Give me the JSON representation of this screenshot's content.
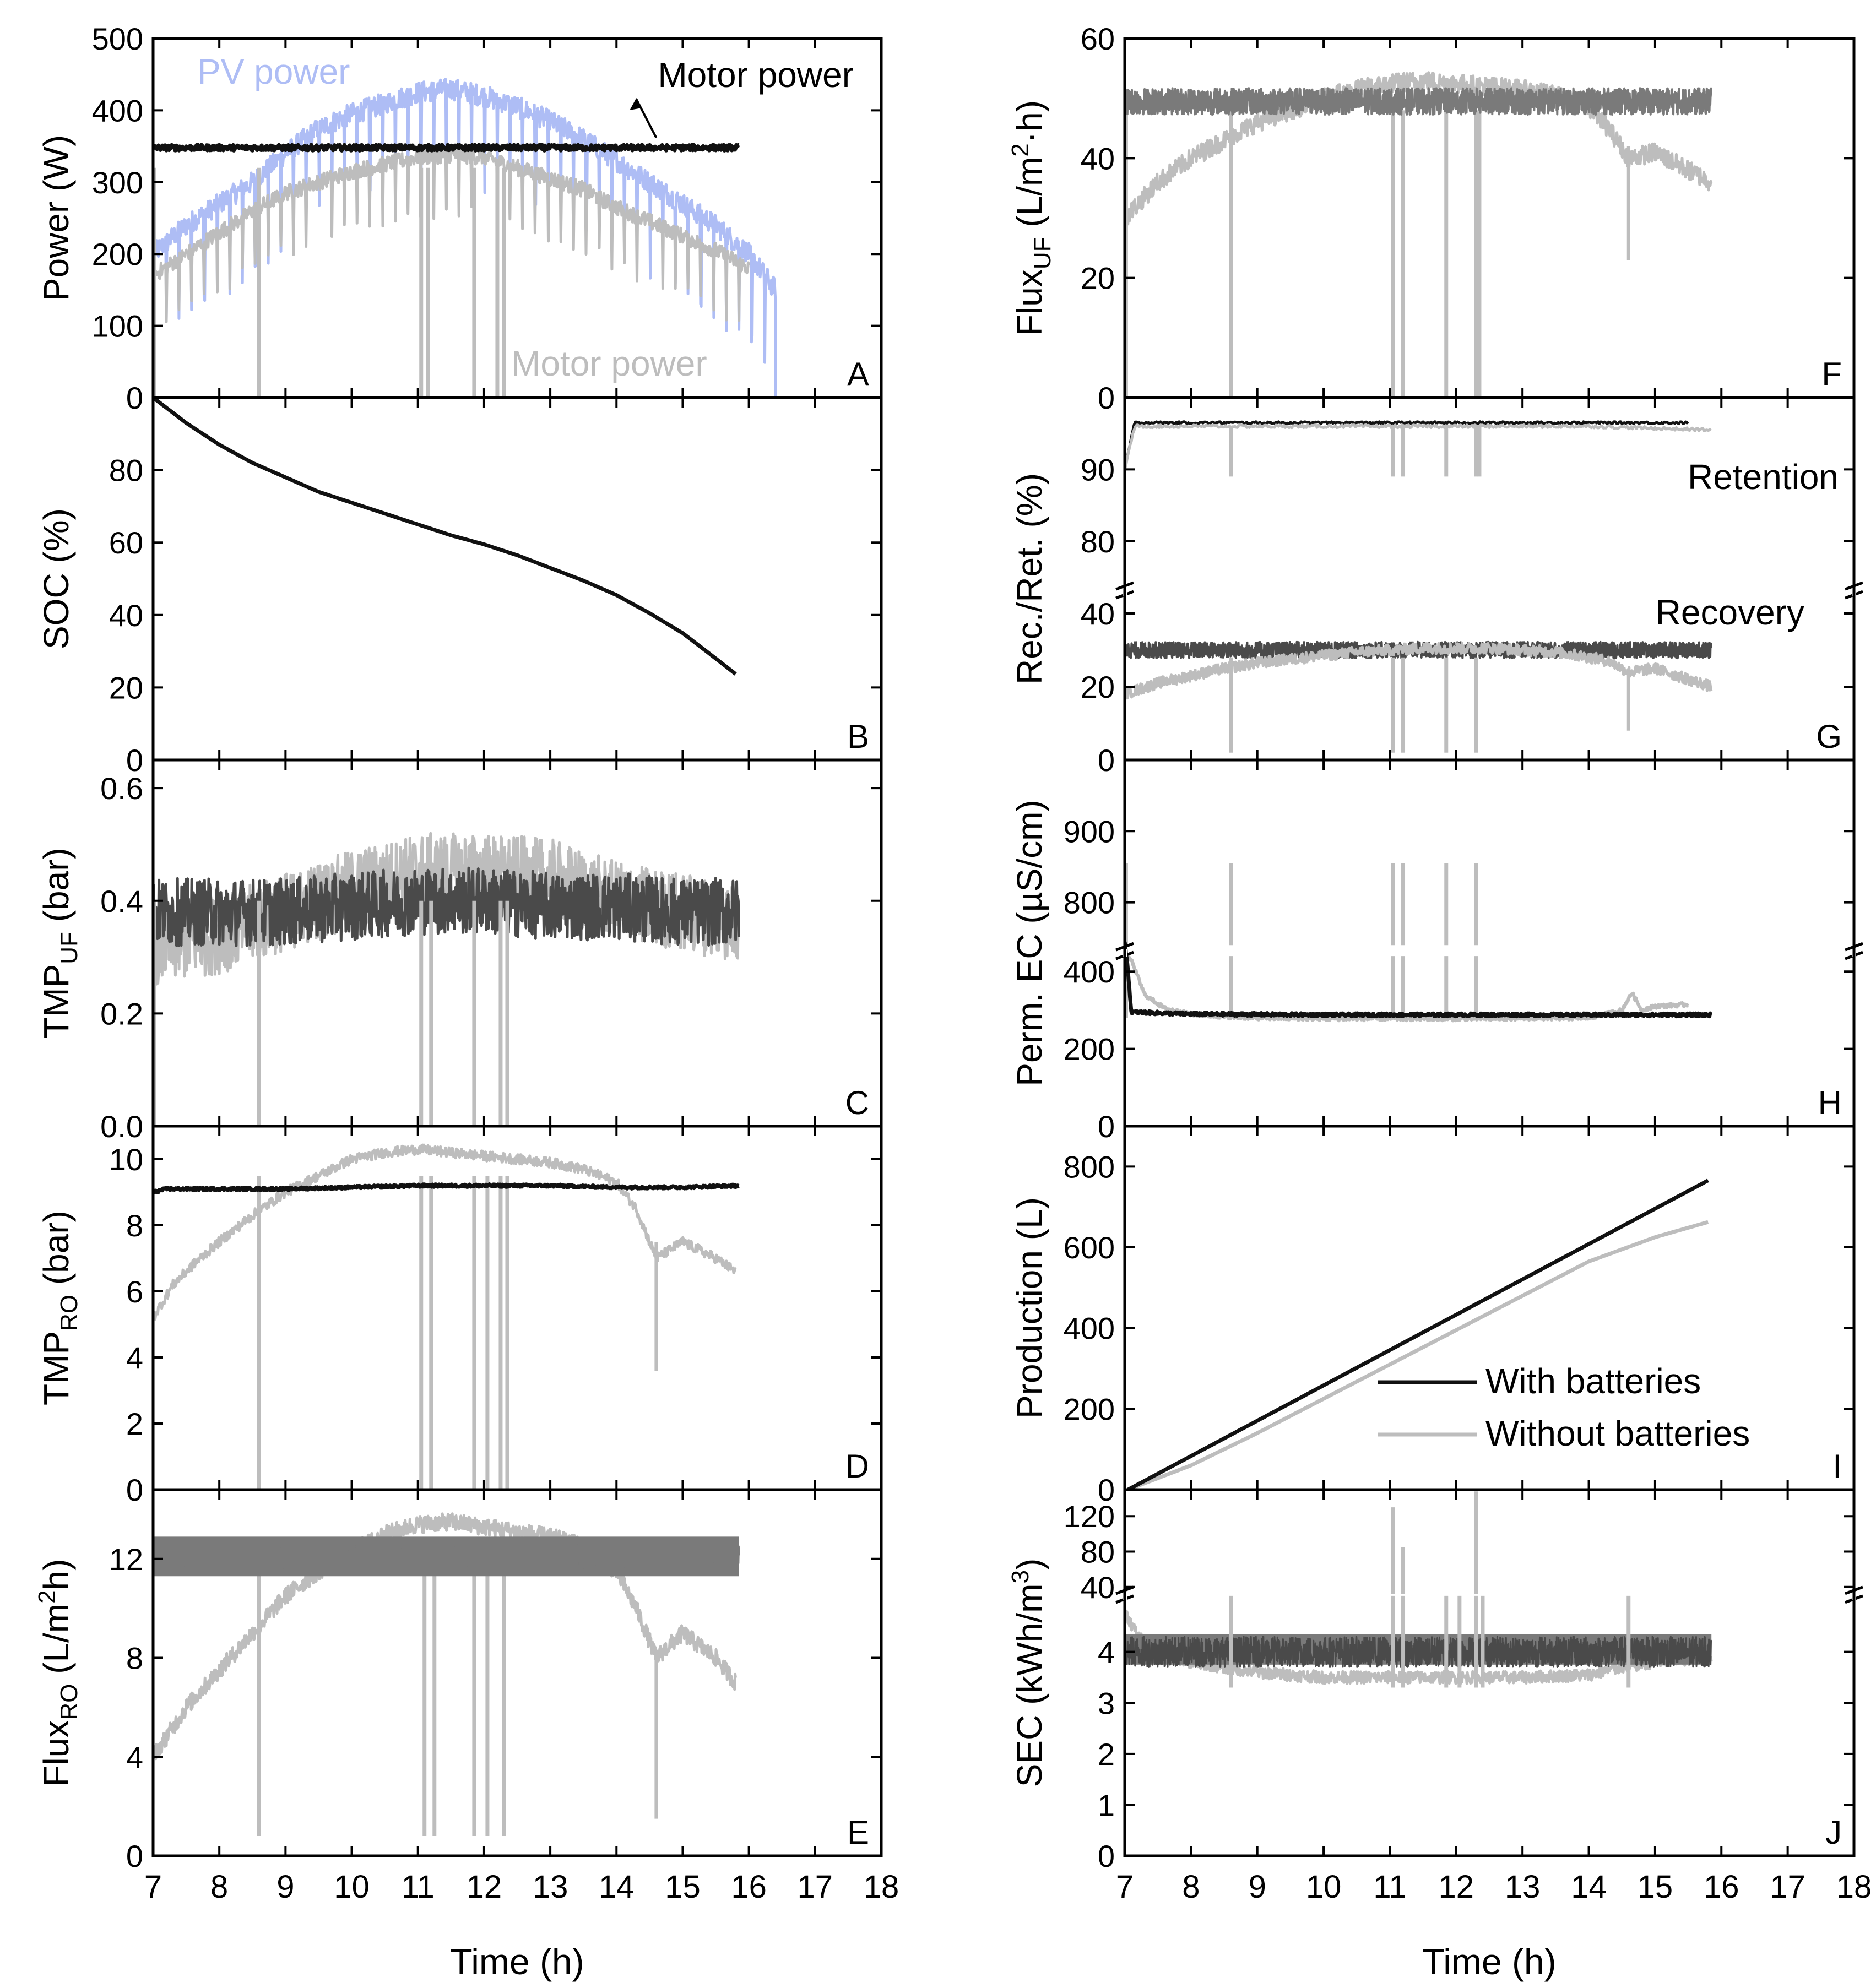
{
  "figure": {
    "x_axis": {
      "label": "Time (h)",
      "ticks": [
        "7",
        "8",
        "9",
        "10",
        "11",
        "12",
        "13",
        "14",
        "15",
        "16",
        "17",
        "18"
      ],
      "min": 7,
      "max": 18
    },
    "colors": {
      "with_batteries": "#111111",
      "with_batteries_dark": "#4a4a4a",
      "with_batteries_mid": "#7a7a7a",
      "without_batteries": "#bdbdbd",
      "pv_power": "#aebdf5"
    }
  },
  "chart_data": [
    {
      "panel": "A",
      "type": "line",
      "ylabel": "Power (W)",
      "ylim": [
        0,
        500
      ],
      "yticks": [
        "0",
        "100",
        "200",
        "300",
        "400",
        "500"
      ],
      "annotations": {
        "pv": "PV power",
        "motor_top": "Motor power",
        "motor_bottom": "Motor power"
      },
      "series": [
        {
          "name": "PV power",
          "x": [
            7.0,
            7.5,
            8.0,
            8.5,
            9.0,
            9.5,
            10.0,
            10.5,
            11.0,
            11.5,
            12.0,
            12.5,
            13.0,
            13.5,
            14.0,
            14.5,
            15.0,
            15.5,
            16.0,
            16.4
          ],
          "values": [
            200,
            240,
            270,
            300,
            340,
            375,
            395,
            410,
            425,
            430,
            420,
            405,
            385,
            360,
            330,
            300,
            270,
            240,
            200,
            150
          ]
        },
        {
          "name": "Motor power (without batteries)",
          "x": [
            7.0,
            7.5,
            8.0,
            8.5,
            9.0,
            9.5,
            10.0,
            10.5,
            11.0,
            11.5,
            12.0,
            12.5,
            13.0,
            13.5,
            14.0,
            14.5,
            15.0,
            15.5,
            16.0
          ],
          "values": [
            170,
            200,
            230,
            260,
            285,
            300,
            315,
            325,
            335,
            338,
            335,
            320,
            305,
            290,
            265,
            245,
            225,
            205,
            180
          ]
        },
        {
          "name": "Motor power (with batteries)",
          "x": [
            7.0,
            15.85
          ],
          "values": [
            348,
            348
          ]
        }
      ]
    },
    {
      "panel": "B",
      "type": "line",
      "ylabel": "SOC (%)",
      "ylim": [
        0,
        100
      ],
      "yticks": [
        "0",
        "20",
        "40",
        "60",
        "80"
      ],
      "series": [
        {
          "name": "SOC",
          "x": [
            7.0,
            7.5,
            8.0,
            8.5,
            9.0,
            9.5,
            10.0,
            10.5,
            11.0,
            11.5,
            12.0,
            12.5,
            13.0,
            13.5,
            14.0,
            14.5,
            15.0,
            15.5,
            15.85
          ],
          "values": [
            100,
            93,
            87,
            82,
            78,
            74,
            71,
            68,
            65,
            62,
            59.5,
            56.5,
            53,
            49.5,
            45.5,
            40.5,
            35,
            28,
            23
          ]
        }
      ]
    },
    {
      "panel": "C",
      "type": "line",
      "ylabel": "TMP_UF (bar)",
      "ylim": [
        0,
        0.65
      ],
      "yticks": [
        "0.0",
        "0.2",
        "0.4",
        "0.6"
      ],
      "series": [
        {
          "name": "Without batteries",
          "x": [
            7.0,
            8.0,
            9.0,
            10.0,
            11.0,
            12.0,
            13.0,
            14.0,
            15.0,
            15.85
          ],
          "values": [
            0.32,
            0.34,
            0.38,
            0.42,
            0.45,
            0.45,
            0.44,
            0.4,
            0.38,
            0.36
          ]
        },
        {
          "name": "With batteries",
          "x": [
            7.0,
            8.0,
            9.0,
            10.0,
            11.0,
            12.0,
            13.0,
            14.0,
            15.0,
            15.85
          ],
          "values": [
            0.38,
            0.38,
            0.38,
            0.39,
            0.4,
            0.4,
            0.39,
            0.39,
            0.38,
            0.38
          ]
        }
      ]
    },
    {
      "panel": "D",
      "type": "line",
      "ylabel": "TMP_RO (bar)",
      "ylim": [
        0,
        11
      ],
      "yticks": [
        "0",
        "2",
        "4",
        "6",
        "8",
        "10"
      ],
      "series": [
        {
          "name": "Without batteries",
          "x": [
            7.0,
            7.3,
            7.6,
            8.0,
            8.5,
            9.0,
            9.5,
            10.0,
            10.5,
            11.0,
            11.5,
            12.0,
            12.5,
            13.0,
            13.5,
            14.0,
            14.3,
            14.6,
            15.0,
            15.5,
            15.8
          ],
          "values": [
            5.2,
            6.2,
            6.8,
            7.5,
            8.3,
            9.0,
            9.5,
            10.0,
            10.2,
            10.3,
            10.2,
            10.1,
            10.0,
            9.9,
            9.7,
            9.3,
            8.5,
            7.0,
            7.5,
            7.0,
            6.6
          ]
        },
        {
          "name": "With batteries",
          "x": [
            7.0,
            7.2,
            8.0,
            9.0,
            10.0,
            11.0,
            12.0,
            13.0,
            14.0,
            15.0,
            15.85
          ],
          "values": [
            9.0,
            9.1,
            9.1,
            9.1,
            9.15,
            9.2,
            9.2,
            9.2,
            9.15,
            9.15,
            9.2
          ]
        }
      ]
    },
    {
      "panel": "E",
      "type": "line",
      "ylabel": "Flux_RO (L/m²h)",
      "ylim": [
        0,
        14.8
      ],
      "yticks": [
        "0",
        "4",
        "8",
        "12"
      ],
      "series": [
        {
          "name": "Without batteries",
          "x": [
            7.0,
            7.5,
            8.0,
            8.5,
            9.0,
            9.5,
            10.0,
            10.5,
            11.0,
            11.5,
            12.0,
            12.5,
            13.0,
            13.5,
            14.0,
            14.3,
            14.6,
            15.0,
            15.5,
            15.8
          ],
          "values": [
            4.0,
            6.0,
            7.5,
            9.0,
            10.5,
            11.5,
            12.3,
            13.0,
            13.4,
            13.5,
            13.3,
            13.1,
            12.9,
            12.5,
            11.5,
            10.0,
            8.0,
            9.0,
            8.0,
            7.0
          ]
        },
        {
          "name": "With batteries",
          "x": [
            7.0,
            8.0,
            9.0,
            10.0,
            11.0,
            12.0,
            13.0,
            14.0,
            15.0,
            15.85
          ],
          "values": [
            12.1,
            12.1,
            12.1,
            12.1,
            12.1,
            12.1,
            12.1,
            12.1,
            12.1,
            12.1
          ]
        }
      ]
    },
    {
      "panel": "F",
      "type": "line",
      "ylabel": "Flux_UF (L/m²·h)",
      "ylim": [
        0,
        60
      ],
      "yticks": [
        "0",
        "20",
        "40",
        "60"
      ],
      "series": [
        {
          "name": "Without batteries",
          "x": [
            7.0,
            7.5,
            8.0,
            8.5,
            9.0,
            9.5,
            10.0,
            10.5,
            11.0,
            11.5,
            12.0,
            12.5,
            13.0,
            13.5,
            14.0,
            14.3,
            14.6,
            15.0,
            15.5,
            15.85
          ],
          "values": [
            30,
            36,
            40,
            43,
            46,
            48,
            50,
            51.5,
            52.5,
            53,
            52.5,
            52,
            51.5,
            50.5,
            48.5,
            45,
            40,
            41,
            38,
            36
          ]
        },
        {
          "name": "With batteries",
          "x": [
            7.0,
            8.0,
            9.0,
            10.0,
            11.0,
            12.0,
            13.0,
            14.0,
            15.0,
            15.85
          ],
          "values": [
            49.5,
            49.5,
            49.5,
            49.5,
            49.5,
            49.5,
            49.5,
            49.5,
            49.5,
            49.5
          ]
        }
      ]
    },
    {
      "panel": "G",
      "type": "line",
      "broken_axis": true,
      "ylabel": "Rec./Ret. (%)",
      "upper": {
        "ylim": [
          73,
          100
        ],
        "yticks": [
          "80",
          "90"
        ]
      },
      "lower": {
        "ylim": [
          0,
          46
        ],
        "yticks": [
          "0",
          "20",
          "40"
        ]
      },
      "annotations": {
        "retention": "Retention",
        "recovery": "Recovery"
      },
      "retention_series": [
        {
          "name": "Retention (with batteries)",
          "x": [
            7.0,
            7.15,
            8.0,
            10.0,
            12.0,
            14.0,
            15.5
          ],
          "values": [
            90,
            96.5,
            96.5,
            96.5,
            96.5,
            96.5,
            96.5
          ]
        },
        {
          "name": "Retention (without batteries)",
          "x": [
            7.0,
            7.15,
            8.0,
            10.0,
            12.0,
            14.0,
            15.85
          ],
          "values": [
            90,
            96,
            96,
            96,
            96,
            96,
            95.5
          ]
        }
      ],
      "recovery_series": [
        {
          "name": "Recovery (with batteries)",
          "x": [
            7.0,
            8.0,
            9.0,
            10.0,
            11.0,
            12.0,
            13.0,
            14.0,
            15.0,
            15.85
          ],
          "values": [
            30,
            30,
            30,
            30,
            30,
            30,
            30,
            30,
            30,
            30
          ]
        },
        {
          "name": "Recovery (without batteries)",
          "x": [
            7.0,
            7.5,
            8.0,
            8.5,
            9.0,
            9.5,
            10.0,
            10.5,
            11.0,
            11.5,
            12.0,
            12.5,
            13.0,
            13.5,
            14.0,
            14.3,
            14.6,
            15.0,
            15.5,
            15.85
          ],
          "values": [
            18,
            21,
            23,
            25,
            26.5,
            27.5,
            28.5,
            29.5,
            30,
            30.5,
            30.5,
            30.5,
            30,
            29.5,
            28,
            27,
            24,
            25,
            22,
            20
          ]
        }
      ]
    },
    {
      "panel": "H",
      "type": "line",
      "broken_axis": true,
      "ylabel": "Perm. EC (µS/cm)",
      "upper": {
        "ylim": [
          730,
          1000
        ],
        "yticks": [
          "800",
          "900"
        ]
      },
      "lower": {
        "ylim": [
          0,
          450
        ],
        "yticks": [
          "0",
          "200",
          "400"
        ]
      },
      "series": [
        {
          "name": "With batteries",
          "x": [
            7.0,
            7.05,
            7.1,
            8.0,
            10.0,
            12.0,
            14.0,
            15.85
          ],
          "values": [
            480,
            400,
            295,
            290,
            288,
            288,
            288,
            288
          ]
        },
        {
          "name": "Without batteries",
          "x": [
            7.0,
            7.1,
            7.3,
            7.6,
            8.0,
            8.5,
            9.0,
            10.0,
            12.0,
            14.0,
            14.5,
            14.65,
            14.8,
            15.0,
            15.5
          ],
          "values": [
            860,
            430,
            340,
            305,
            290,
            283,
            280,
            278,
            278,
            280,
            300,
            345,
            300,
            310,
            315
          ]
        }
      ]
    },
    {
      "panel": "I",
      "type": "line",
      "ylabel": "Production (L)",
      "ylim": [
        0,
        900
      ],
      "yticks": [
        "0",
        "200",
        "400",
        "600",
        "800"
      ],
      "legend": {
        "with": "With batteries",
        "without": "Without batteries",
        "position": "bottom-right"
      },
      "series": [
        {
          "name": "With batteries",
          "x": [
            7.05,
            15.85
          ],
          "values": [
            0,
            770
          ]
        },
        {
          "name": "Without batteries",
          "x": [
            7.05,
            8.0,
            9.0,
            10.0,
            11.0,
            12.0,
            13.0,
            14.0,
            15.0,
            15.85
          ],
          "values": [
            0,
            60,
            140,
            225,
            310,
            395,
            480,
            565,
            625,
            665
          ]
        }
      ]
    },
    {
      "panel": "J",
      "type": "line",
      "broken_axis": true,
      "ylabel": "SEC (kWh/m³)",
      "upper": {
        "ylim": [
          30,
          150
        ],
        "yticks": [
          "40",
          "80",
          "120"
        ]
      },
      "lower": {
        "ylim": [
          0,
          5.1
        ],
        "yticks": [
          "0",
          "1",
          "2",
          "3",
          "4"
        ]
      },
      "series": [
        {
          "name": "With batteries",
          "x": [
            7.0,
            8.0,
            9.0,
            10.0,
            11.0,
            12.0,
            13.0,
            14.0,
            15.0,
            15.85
          ],
          "values": [
            4.0,
            4.0,
            4.0,
            4.0,
            4.0,
            4.0,
            4.0,
            4.0,
            4.0,
            4.0
          ]
        },
        {
          "name": "Without batteries",
          "x": [
            7.0,
            7.2,
            7.5,
            8.0,
            9.0,
            10.0,
            11.0,
            12.0,
            13.0,
            14.0,
            14.5,
            15.0,
            15.85
          ],
          "values": [
            4.8,
            4.3,
            4.0,
            3.8,
            3.6,
            3.5,
            3.5,
            3.5,
            3.5,
            3.55,
            3.7,
            3.8,
            3.9
          ]
        }
      ]
    }
  ]
}
